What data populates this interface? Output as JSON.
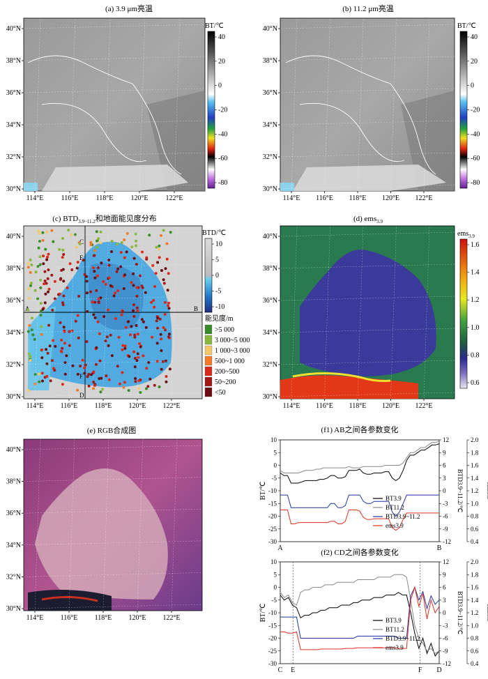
{
  "panels": {
    "a": {
      "title": "(a) 3.9 μm亮温",
      "cbar_label": "BT/℃",
      "cbar_ticks": [
        "40",
        "20",
        "0",
        "-20",
        "-40",
        "-60",
        "-80"
      ]
    },
    "b": {
      "title": "(b) 11.2 μm亮温",
      "cbar_label": "BT/℃",
      "cbar_ticks": [
        "40",
        "20",
        "0",
        "-20",
        "-40",
        "-60",
        "-80"
      ]
    },
    "c": {
      "title_main": "(c) BTD",
      "title_sub": "3.9~11.2",
      "title_rest": "和地面能见度分布",
      "cbar_label": "BTD/℃",
      "cbar_ticks": [
        "10",
        "5",
        "0",
        "-5",
        "-10"
      ],
      "vis_legend_title": "能见度/m",
      "vis_legend": [
        {
          "label": ">5 000",
          "color": "#3a8a2a"
        },
        {
          "label": "3 000~5 000",
          "color": "#8ab83a"
        },
        {
          "label": "1 000~3 000",
          "color": "#f2c86a"
        },
        {
          "label": "500~1 000",
          "color": "#f07a2a"
        },
        {
          "label": "200~500",
          "color": "#d82a1a"
        },
        {
          "label": "50~200",
          "color": "#a01818"
        },
        {
          "label": "<50",
          "color": "#6a0e12"
        }
      ],
      "line_labels": {
        "A": "A",
        "B": "B",
        "C": "C",
        "D": "D",
        "E": "E",
        "F": "F"
      }
    },
    "d": {
      "title_main": "(d) ems",
      "title_sub": "3.9",
      "cbar_label_main": "ems",
      "cbar_label_sub": "3.9",
      "cbar_ticks": [
        "1.6",
        "1.4",
        "1.2",
        "1.0",
        "0.8",
        "0.6"
      ]
    },
    "e": {
      "title": "(e) RGB合成图"
    },
    "map_lat_ticks": [
      "40°N",
      "38°N",
      "36°N",
      "34°N",
      "32°N",
      "30°N"
    ],
    "map_lon_ticks": [
      "114°E",
      "116°E",
      "118°E",
      "120°E",
      "122°E"
    ]
  },
  "chart_data": [
    {
      "type": "line",
      "title": "(f1) AB之间各参数变化",
      "xlabel_start": "A",
      "xlabel_end": "B",
      "ylabel_left": "BT/℃",
      "ylabel_right1": "BTD3.9~11.2/℃",
      "ylabel_right2": "ems3.9",
      "ylim_left": [
        -30,
        10
      ],
      "yticks_left": [
        "10",
        "5",
        "0",
        "-5",
        "-10",
        "-15",
        "-20",
        "-25",
        "-30"
      ],
      "ylim_right1": [
        -12,
        12
      ],
      "yticks_right1": [
        "12",
        "9",
        "6",
        "3",
        "0",
        "-3",
        "-6",
        "-9",
        "-12"
      ],
      "ylim_right2": [
        0.4,
        2.0
      ],
      "yticks_right2": [
        "2.0",
        "1.8",
        "1.6",
        "1.4",
        "1.2",
        "1.0",
        "0.8",
        "0.6",
        "0.4"
      ],
      "legend": [
        "BT3.9",
        "BT11.2",
        "BTD3.9~11.2",
        "ems3.9"
      ],
      "series": [
        {
          "name": "BT3.9",
          "color": "#000000",
          "values": [
            -3,
            -4,
            -4,
            -7,
            -7,
            -7,
            -6.5,
            -6,
            -6,
            -6,
            -6,
            -5.5,
            -5.5,
            -5,
            -4,
            -4,
            -5,
            -5,
            -4.5,
            -2,
            -2,
            -2,
            -1.5,
            -3,
            -3.5,
            -3.5,
            -3,
            -3,
            -3,
            -2.5,
            -2.5,
            -5,
            -6,
            -5,
            -2,
            2,
            4,
            4,
            5,
            6,
            6,
            7,
            8,
            8,
            8.5
          ]
        },
        {
          "name": "BT11.2",
          "color": "#888888",
          "values": [
            -2,
            -3,
            -3,
            -3,
            -3,
            -3,
            -2.5,
            -2,
            -2,
            -2,
            -1.5,
            -1.5,
            -1,
            -1,
            -1,
            -1,
            -1,
            -1,
            -1,
            -0.5,
            -1,
            -1,
            -1,
            -0.5,
            -0.5,
            -0.5,
            -0.5,
            -0.5,
            -0.5,
            0,
            0,
            0,
            0,
            0,
            1,
            3,
            5,
            5,
            6,
            7,
            7,
            8,
            9,
            9,
            9.5
          ]
        },
        {
          "name": "BTD3.9~11.2",
          "color": "#2030a0",
          "values": [
            -1,
            -1,
            -1,
            -4,
            -4,
            -4,
            -4,
            -4,
            -4,
            -4,
            -4,
            -4,
            -4,
            -4,
            -3,
            -3,
            -4,
            -4,
            -3.5,
            -1,
            -1,
            -1,
            -1,
            -2.5,
            -3,
            -3,
            -2.5,
            -2.5,
            -2.5,
            -2.5,
            -2.5,
            -5,
            -6,
            -5,
            -3,
            -1,
            -1,
            -1,
            -1,
            -1,
            -1,
            -1,
            -1,
            -1,
            -1
          ]
        },
        {
          "name": "ems3.9",
          "color": "#e03020",
          "values": [
            0.9,
            0.9,
            0.9,
            0.68,
            0.68,
            0.7,
            0.7,
            0.7,
            0.7,
            0.7,
            0.7,
            0.7,
            0.7,
            0.7,
            0.72,
            0.72,
            0.68,
            0.68,
            0.72,
            0.9,
            0.9,
            0.9,
            0.88,
            0.78,
            0.75,
            0.75,
            0.76,
            0.76,
            0.76,
            0.76,
            0.76,
            0.62,
            0.58,
            0.62,
            0.75,
            0.85,
            0.85,
            0.85,
            0.85,
            0.85,
            0.85,
            0.85,
            0.85,
            0.85,
            0.85
          ]
        }
      ]
    },
    {
      "type": "line",
      "title": "(f2) CD之间各参数变化",
      "xlabel_marks": [
        "C",
        "E",
        "F",
        "D"
      ],
      "ylabel_left": "BT/℃",
      "ylabel_right1": "BTD3.9~11.2/℃",
      "ylabel_right2": "ems3.9",
      "ylim_left": [
        -30,
        10
      ],
      "yticks_left": [
        "10",
        "5",
        "0",
        "-5",
        "-10",
        "-15",
        "-20",
        "-25",
        "-30"
      ],
      "ylim_right1": [
        -12,
        12
      ],
      "yticks_right1": [
        "12",
        "9",
        "6",
        "3",
        "0",
        "-3",
        "-6",
        "-9",
        "-12"
      ],
      "ylim_right2": [
        0.4,
        2.0
      ],
      "yticks_right2": [
        "2.0",
        "1.8",
        "1.6",
        "1.4",
        "1.2",
        "1.0",
        "0.8",
        "0.6",
        "0.4"
      ],
      "legend": [
        "BT3.9",
        "BT11.2",
        "BTD3.9~11.2",
        "ems3.9"
      ],
      "series": [
        {
          "name": "BT3.9",
          "color": "#000000",
          "values": [
            -3,
            -5,
            -4,
            -7,
            -8,
            -12,
            -11,
            -11,
            -10,
            -10,
            -9,
            -9,
            -8,
            -8,
            -8,
            -7,
            -7,
            -7,
            -6,
            -6,
            -5,
            -5,
            -5,
            -4,
            -4,
            -4,
            -3,
            -3,
            -3,
            -2,
            -3,
            -3,
            -10,
            -18,
            -24,
            -20,
            -26,
            -22,
            -27,
            -25
          ]
        },
        {
          "name": "BT11.2",
          "color": "#888888",
          "values": [
            -2,
            -4,
            -3,
            -6,
            -7,
            -2,
            -1,
            -1,
            0,
            0,
            0,
            1,
            1,
            1,
            2,
            2,
            2,
            2,
            2,
            3,
            3,
            3,
            3,
            3,
            4,
            4,
            4,
            4,
            5,
            5,
            5,
            4,
            -5,
            -15,
            -20,
            -22,
            -25,
            -24,
            -26,
            -25
          ]
        },
        {
          "name": "BTD3.9~11.2",
          "color": "#2030a0",
          "values": [
            -1,
            -1,
            -1,
            -1,
            -1,
            -6,
            -6,
            -6,
            -6,
            -6,
            -6,
            -6,
            -6,
            -6,
            -6,
            -6,
            -6,
            -6,
            -6,
            -5.5,
            -5.5,
            -5.5,
            -5.5,
            -5.5,
            -5.5,
            -5.5,
            -5.5,
            -5.5,
            -5.5,
            -6,
            -6,
            -6,
            4,
            6,
            3,
            5,
            1,
            4,
            2,
            3
          ]
        },
        {
          "name": "ems3.9",
          "color": "#e03020",
          "values": [
            0.9,
            0.9,
            0.88,
            0.88,
            0.9,
            0.62,
            0.62,
            0.62,
            0.62,
            0.62,
            0.63,
            0.63,
            0.63,
            0.63,
            0.63,
            0.63,
            0.64,
            0.64,
            0.64,
            0.65,
            0.65,
            0.65,
            0.65,
            0.65,
            0.65,
            0.65,
            0.65,
            0.65,
            0.65,
            0.64,
            0.64,
            0.64,
            1.4,
            1.6,
            1.3,
            1.5,
            1.1,
            1.4,
            1.2,
            1.3
          ]
        }
      ]
    }
  ]
}
